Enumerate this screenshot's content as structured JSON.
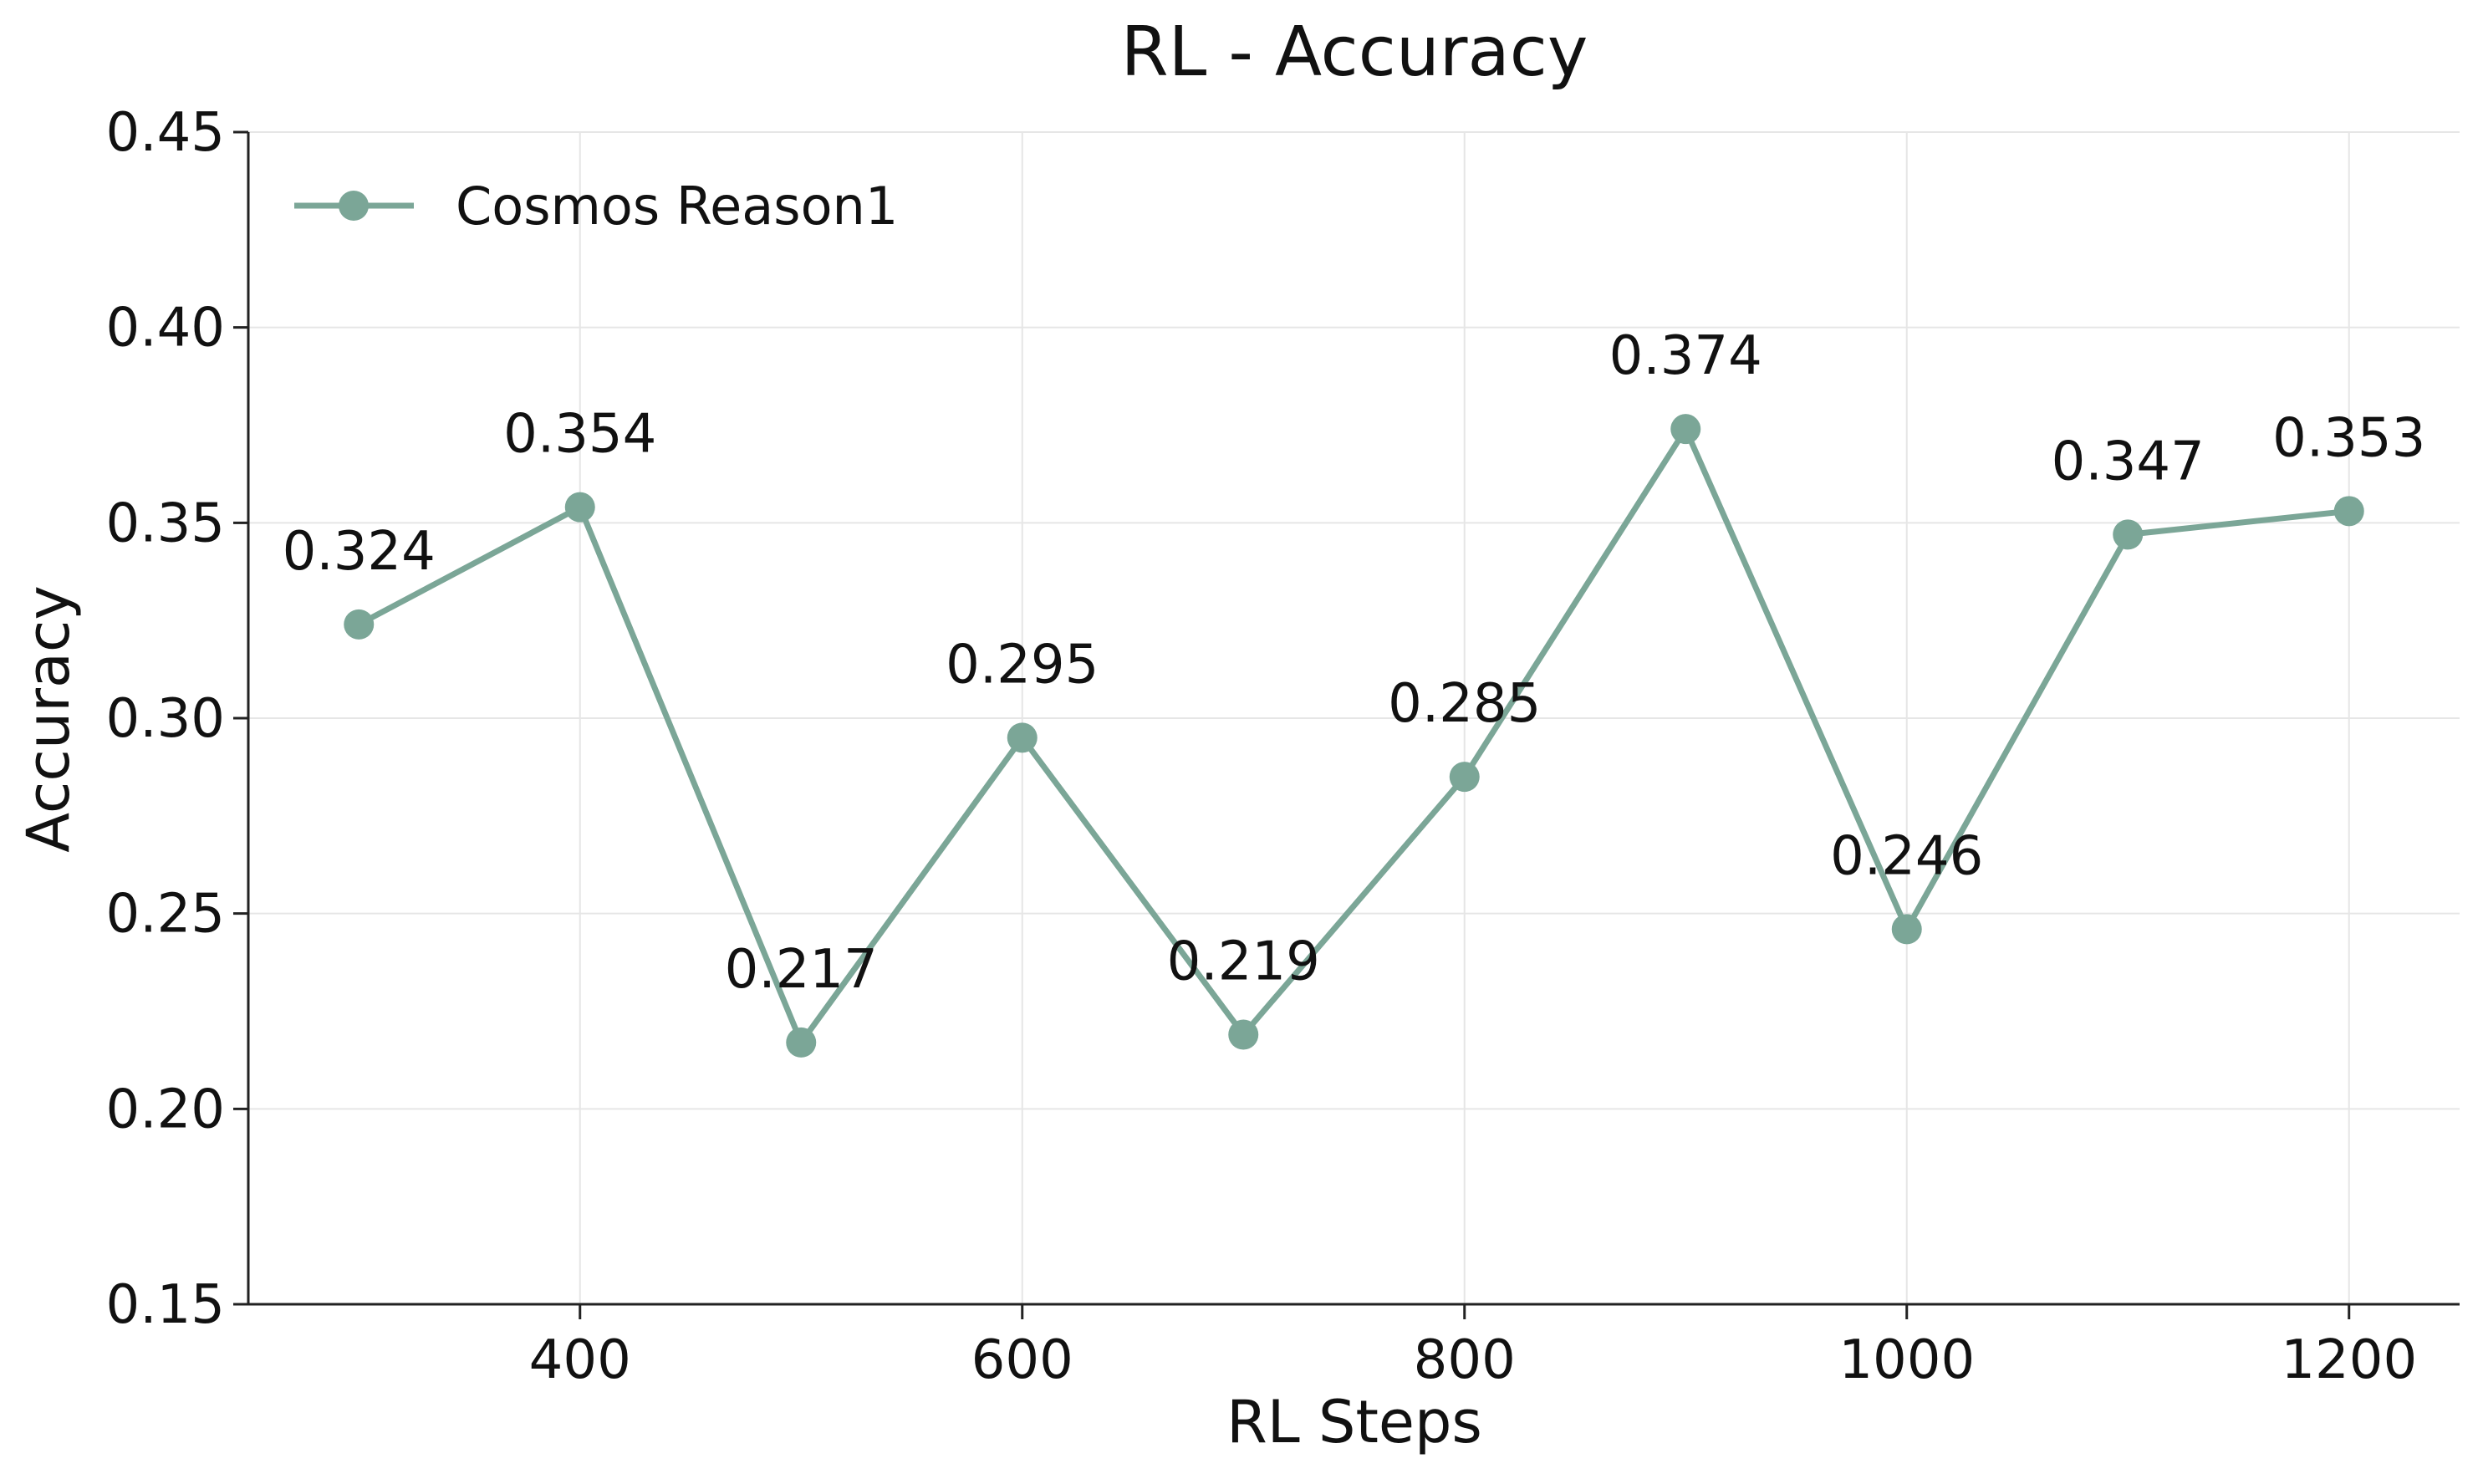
{
  "chart_data": {
    "type": "line",
    "title": "RL - Accuracy",
    "xlabel": "RL Steps",
    "ylabel": "Accuracy",
    "xlim": [
      250,
      1250
    ],
    "ylim": [
      0.15,
      0.45
    ],
    "x_ticks": [
      400,
      600,
      800,
      1000,
      1200
    ],
    "x_tick_labels": [
      "400",
      "600",
      "800",
      "1000",
      "1200"
    ],
    "y_ticks": [
      0.15,
      0.2,
      0.25,
      0.3,
      0.35,
      0.4,
      0.45
    ],
    "y_tick_labels": [
      "0.15",
      "0.20",
      "0.25",
      "0.30",
      "0.35",
      "0.40",
      "0.45"
    ],
    "grid": true,
    "legend_position": "top-left",
    "x": [
      300,
      400,
      500,
      600,
      700,
      800,
      900,
      1000,
      1100,
      1200
    ],
    "series": [
      {
        "name": "Cosmos Reason1",
        "color": "#7ba697",
        "values": [
          0.324,
          0.354,
          0.217,
          0.295,
          0.219,
          0.285,
          0.374,
          0.246,
          0.347,
          0.353
        ],
        "data_labels": [
          "0.324",
          "0.354",
          "0.217",
          "0.295",
          "0.219",
          "0.285",
          "0.374",
          "0.246",
          "0.347",
          "0.353"
        ]
      }
    ]
  }
}
